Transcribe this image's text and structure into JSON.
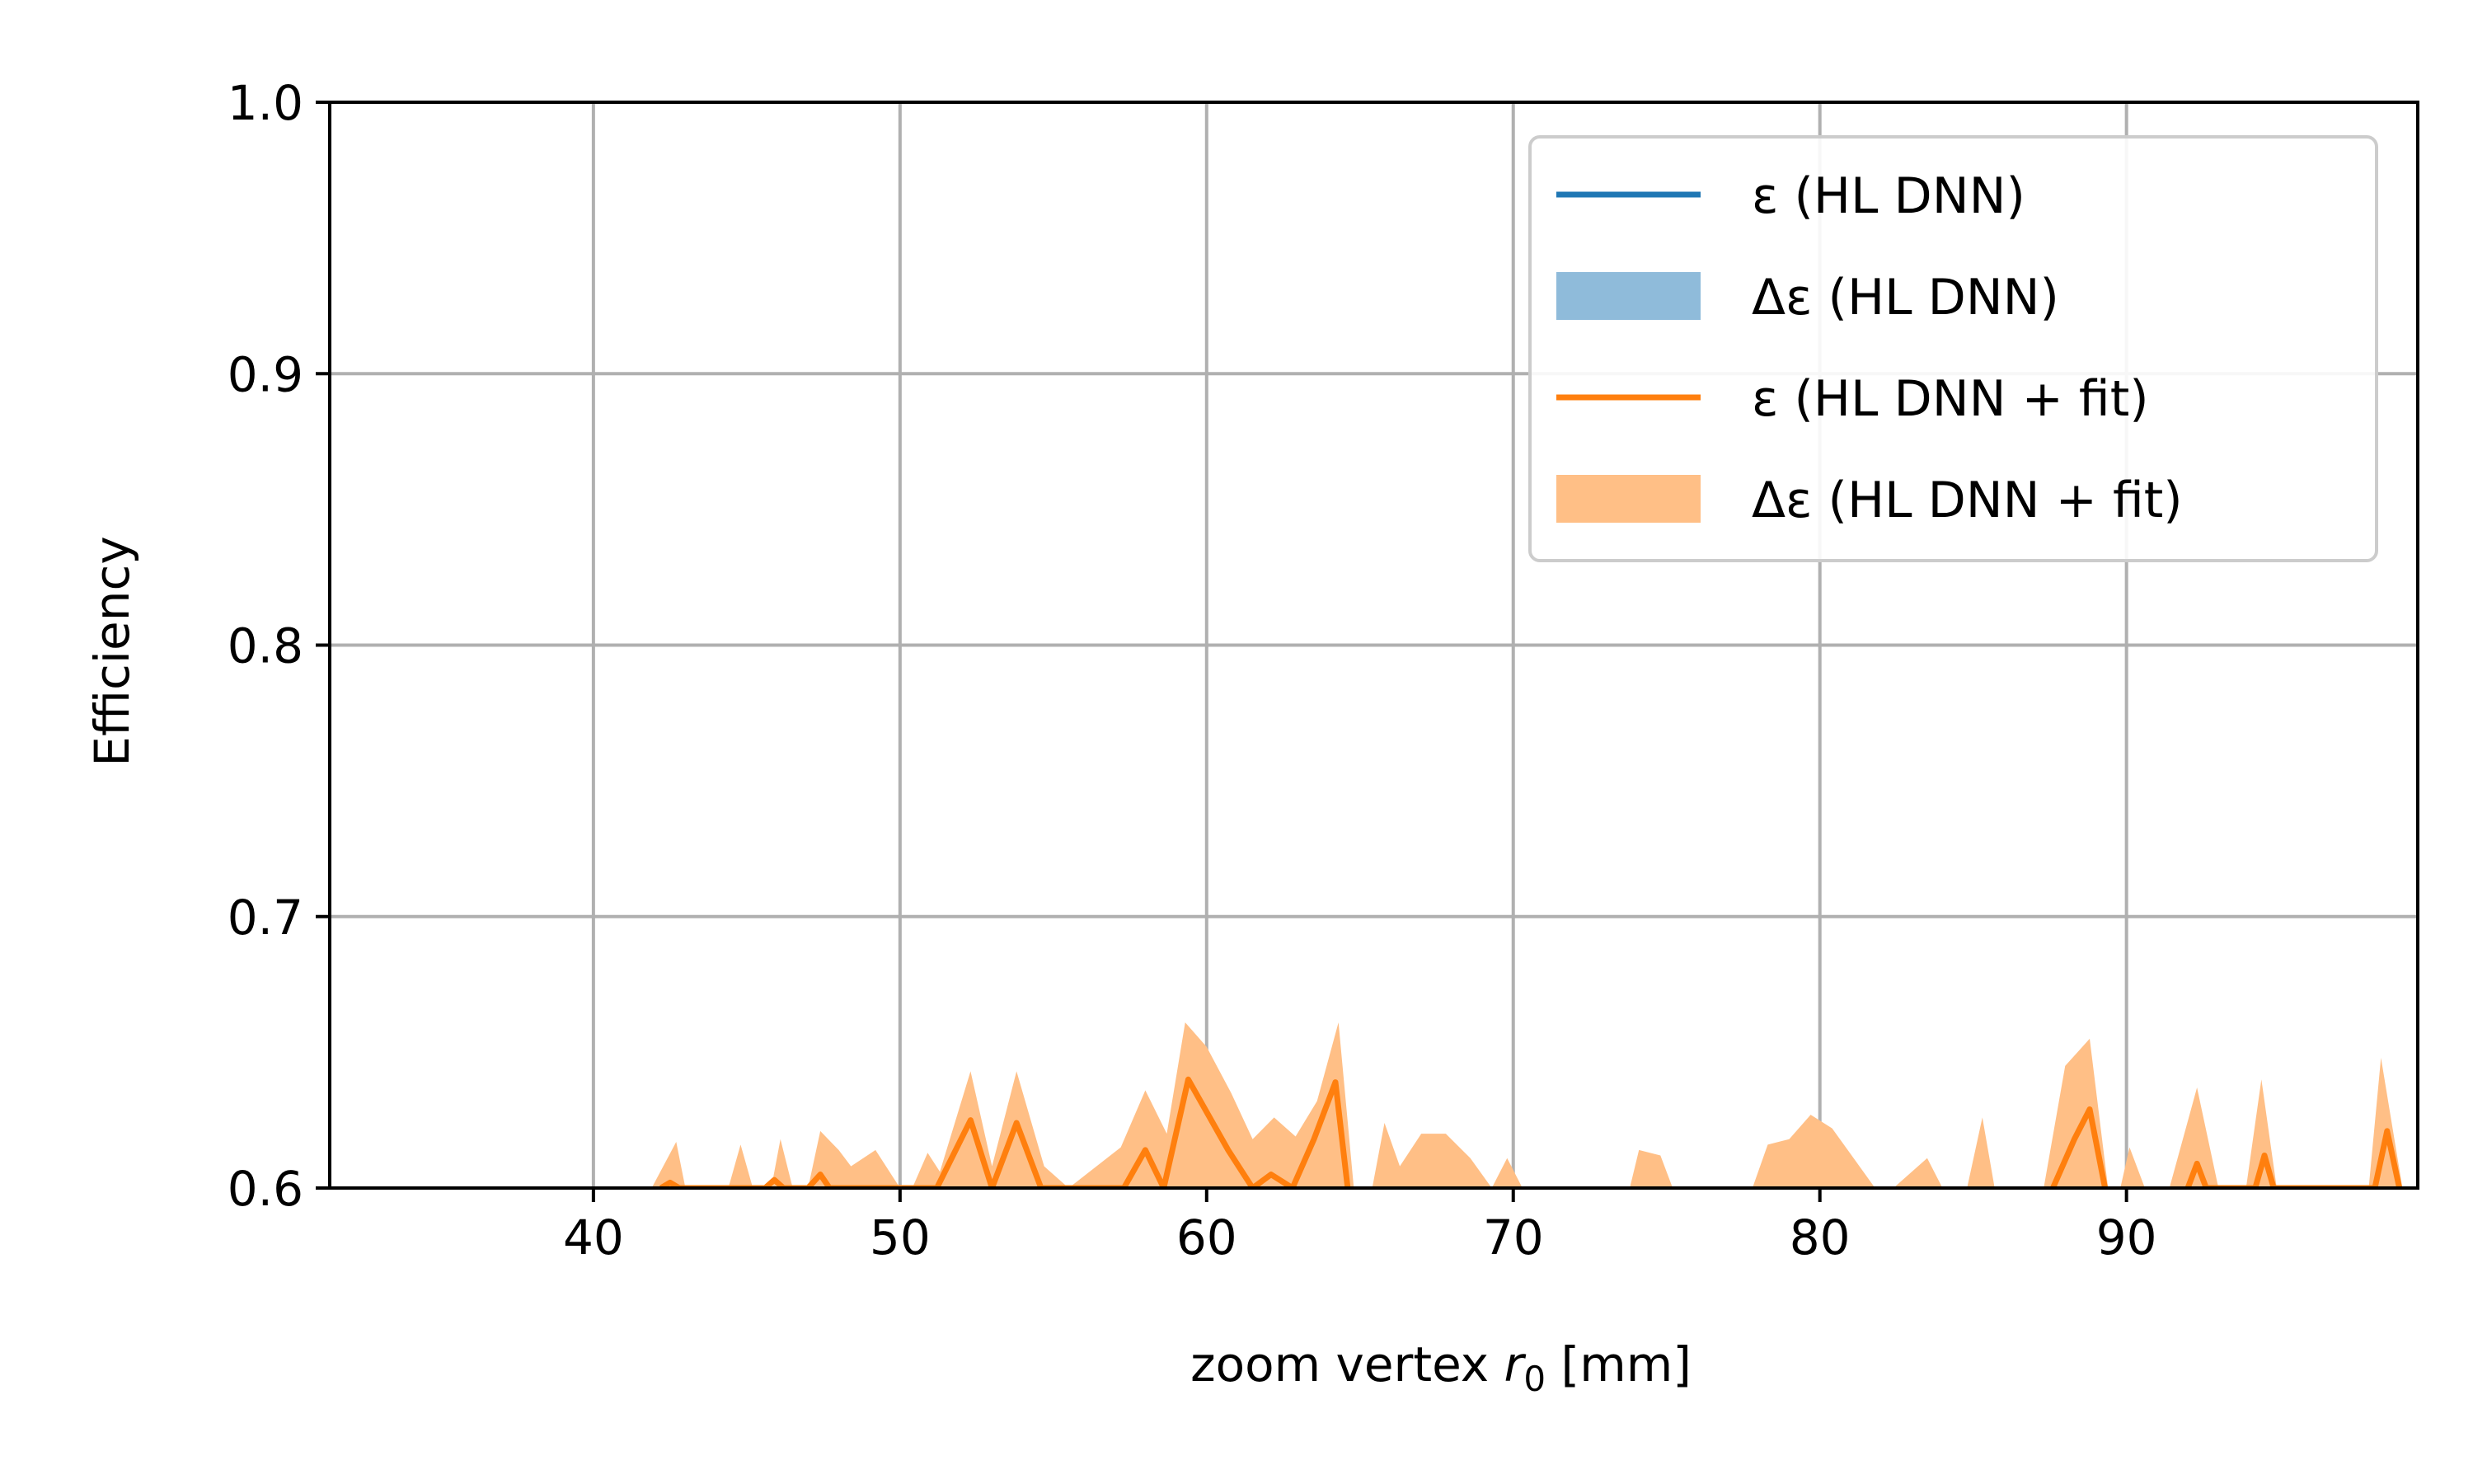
{
  "chart_data": {
    "type": "line",
    "xlabel": "zoom vertex r0 [mm]",
    "xlabel_parts": {
      "pre": "zoom vertex ",
      "var": "r",
      "sub": "0",
      "post": " [mm]"
    },
    "ylabel": "Efficiency",
    "xlim": [
      31.4,
      99.5
    ],
    "ylim": [
      0.6,
      1.0
    ],
    "x_ticks": [
      40,
      50,
      60,
      70,
      80,
      90
    ],
    "x_tick_labels": [
      "40",
      "50",
      "60",
      "70",
      "80",
      "90"
    ],
    "y_ticks": [
      0.6,
      0.7,
      0.8,
      0.9,
      1.0
    ],
    "y_tick_labels": [
      "0.6",
      "0.7",
      "0.8",
      "0.9",
      "1.0"
    ],
    "grid": true,
    "legend_position": "top-right",
    "legend": [
      {
        "label": "ε (HL DNN)",
        "kind": "line",
        "color": "#1f77b4"
      },
      {
        "label": "Δε (HL DNN)",
        "kind": "patch",
        "color": "#8fbbda"
      },
      {
        "label": "ε (HL DNN + fit)",
        "kind": "line",
        "color": "#ff7f0e"
      },
      {
        "label": "Δε (HL DNN + fit)",
        "kind": "patch",
        "color": "#ffbf86"
      }
    ],
    "series": [
      {
        "name": "ε (HL DNN + fit)",
        "color": "#ff7f0e",
        "x": [
          42.2,
          42.5,
          42.8,
          45.6,
          45.9,
          46.2,
          47.0,
          47.4,
          47.7,
          51.2,
          52.3,
          53.0,
          53.8,
          54.6,
          57.3,
          58.0,
          58.6,
          59.4,
          60.7,
          61.5,
          62.1,
          62.8,
          63.5,
          64.2,
          64.6
        ],
        "y": [
          0.6,
          0.602,
          0.6,
          0.6,
          0.603,
          0.6,
          0.6,
          0.605,
          0.6,
          0.6,
          0.625,
          0.6,
          0.624,
          0.6,
          0.6,
          0.614,
          0.6,
          0.64,
          0.614,
          0.6,
          0.605,
          0.6,
          0.618,
          0.639,
          0.6
        ]
      },
      {
        "name": "ε (HL DNN + fit), fragments",
        "color": "#ff7f0e",
        "x": [
          87.6,
          88.3,
          88.8,
          89.3
        ],
        "y": [
          0.6,
          0.618,
          0.629,
          0.6
        ]
      },
      {
        "name": "ε (HL DNN + fit), spikes",
        "color": "#ff7f0e",
        "x": [
          92.0,
          92.3,
          92.6,
          94.2,
          94.5,
          94.8,
          98.1,
          98.5,
          98.9
        ],
        "y": [
          0.6,
          0.609,
          0.6,
          0.6,
          0.612,
          0.6,
          0.6,
          0.621,
          0.6
        ]
      },
      {
        "name": "Δε (HL DNN + fit)",
        "color": "#ffbf86",
        "band_x": [
          41.9,
          42.7,
          43.0,
          44.4,
          44.8,
          45.2,
          45.8,
          46.1,
          46.5,
          47.0,
          47.4,
          48.0,
          48.4,
          49.2,
          50.0,
          50.4,
          50.9,
          51.3,
          52.3,
          53.0,
          53.8,
          54.7,
          55.5,
          57.2,
          58.0,
          58.7,
          59.3,
          60.0,
          60.8,
          61.5,
          62.2,
          62.9,
          63.6,
          64.3,
          64.8,
          65.4,
          65.8,
          66.3,
          67.0,
          67.8,
          68.6,
          69.3,
          69.8,
          70.3,
          73.8,
          74.1,
          74.8,
          75.2,
          77.8,
          78.3,
          79.0,
          79.7,
          80.4,
          81.1,
          81.8,
          82.4,
          83.5,
          84.0,
          84.8,
          85.3,
          85.7,
          87.3,
          88.0,
          88.8,
          89.4,
          89.8,
          90.1,
          90.6,
          91.4,
          92.3,
          93.0,
          93.9,
          94.4,
          94.9,
          97.9,
          98.3,
          99.0
        ],
        "band_y": [
          0.6,
          0.617,
          0.6,
          0.6,
          0.616,
          0.6,
          0.6,
          0.618,
          0.6,
          0.6,
          0.621,
          0.614,
          0.608,
          0.614,
          0.6,
          0.6,
          0.613,
          0.606,
          0.643,
          0.608,
          0.643,
          0.608,
          0.6,
          0.615,
          0.636,
          0.62,
          0.661,
          0.652,
          0.635,
          0.618,
          0.626,
          0.619,
          0.632,
          0.661,
          0.6,
          0.6,
          0.624,
          0.608,
          0.62,
          0.62,
          0.611,
          0.6,
          0.611,
          0.6,
          0.6,
          0.614,
          0.612,
          0.6,
          0.6,
          0.616,
          0.618,
          0.627,
          0.622,
          0.611,
          0.6,
          0.6,
          0.611,
          0.6,
          0.6,
          0.626,
          0.6,
          0.6,
          0.645,
          0.655,
          0.6,
          0.6,
          0.615,
          0.6,
          0.6,
          0.637,
          0.6,
          0.6,
          0.64,
          0.6,
          0.6,
          0.648,
          0.6
        ]
      },
      {
        "name": "ε (HL DNN)",
        "color": "#1f77b4",
        "x": [],
        "y": []
      },
      {
        "name": "Δε (HL DNN)",
        "color": "#8fbbda",
        "band_x": [],
        "band_y": []
      }
    ]
  }
}
